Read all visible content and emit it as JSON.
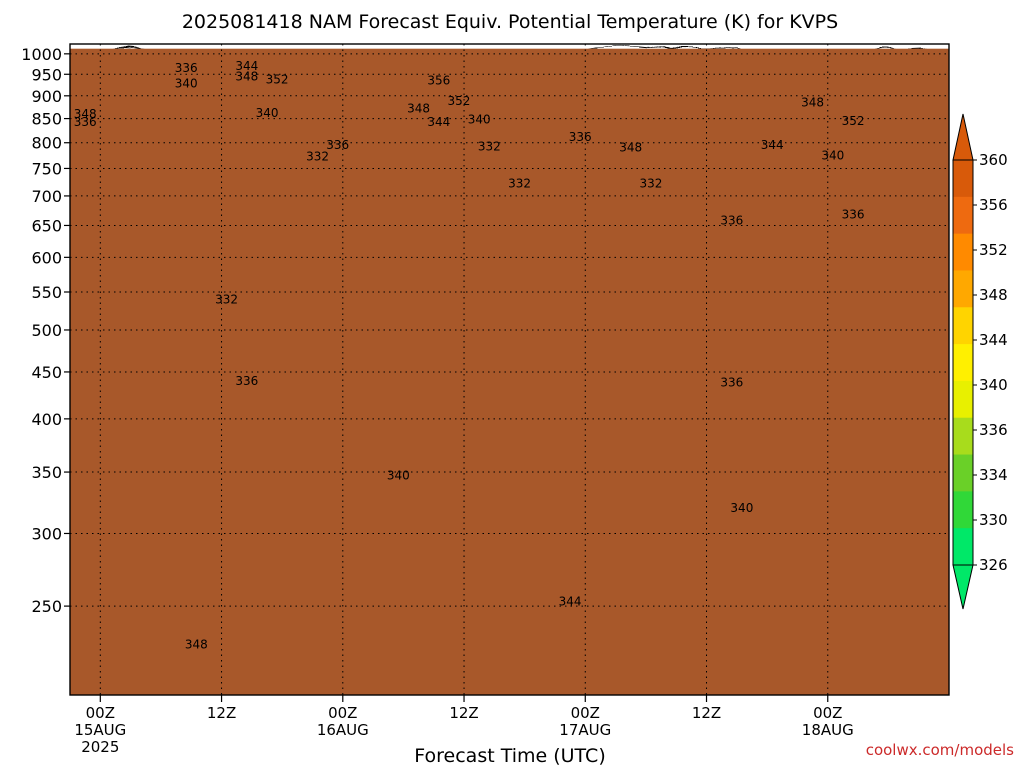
{
  "chart_data": {
    "type": "heatmap",
    "title": "2025081418 NAM Forecast Equiv. Potential Temperature (K) for KVPS",
    "xlabel": "Forecast Time (UTC)",
    "ylabel": "",
    "credit": "coolwx.com/models",
    "y_scale": "log-pressure",
    "y_range_hPa": [
      1025,
      200
    ],
    "y_ticks": [
      {
        "value": 250,
        "label": "250"
      },
      {
        "value": 300,
        "label": "300"
      },
      {
        "value": 350,
        "label": "350"
      },
      {
        "value": 400,
        "label": "400"
      },
      {
        "value": 450,
        "label": "450"
      },
      {
        "value": 500,
        "label": "500"
      },
      {
        "value": 550,
        "label": "550"
      },
      {
        "value": 600,
        "label": "600"
      },
      {
        "value": 650,
        "label": "650"
      },
      {
        "value": 700,
        "label": "700"
      },
      {
        "value": 750,
        "label": "750"
      },
      {
        "value": 800,
        "label": "800"
      },
      {
        "value": 850,
        "label": "850"
      },
      {
        "value": 900,
        "label": "900"
      },
      {
        "value": 950,
        "label": "950"
      },
      {
        "value": 1000,
        "label": "1000"
      }
    ],
    "x_range_hours": [
      -3,
      84
    ],
    "x_ticks": [
      {
        "value": 0,
        "lines": [
          "00Z",
          "15AUG",
          "2025"
        ]
      },
      {
        "value": 12,
        "lines": [
          "12Z"
        ]
      },
      {
        "value": 24,
        "lines": [
          "00Z",
          "16AUG"
        ]
      },
      {
        "value": 36,
        "lines": [
          "12Z"
        ]
      },
      {
        "value": 48,
        "lines": [
          "00Z",
          "17AUG"
        ]
      },
      {
        "value": 60,
        "lines": [
          "12Z"
        ]
      },
      {
        "value": 72,
        "lines": [
          "00Z",
          "18AUG"
        ]
      }
    ],
    "grid": true,
    "colorbar": {
      "levels": [
        326,
        330,
        334,
        336,
        340,
        344,
        348,
        352,
        356,
        360
      ],
      "colors": [
        "#00e868",
        "#30d838",
        "#6ad028",
        "#a8dc1c",
        "#e8f000",
        "#fff000",
        "#ffd400",
        "#ffa800",
        "#ff8a00",
        "#ee6a10",
        "#d85a0a"
      ],
      "triangle_colors": {
        "low": "#00e868",
        "high": "#d85a0a"
      }
    },
    "contour_labels": [
      {
        "text": "348",
        "x": 9.5,
        "p": 227
      },
      {
        "text": "344",
        "x": 46.5,
        "p": 253
      },
      {
        "text": "340",
        "x": 63.5,
        "p": 320
      },
      {
        "text": "340",
        "x": 29.5,
        "p": 347
      },
      {
        "text": "336",
        "x": 14.5,
        "p": 440
      },
      {
        "text": "336",
        "x": 62.5,
        "p": 438
      },
      {
        "text": "332",
        "x": 12.5,
        "p": 540
      },
      {
        "text": "336",
        "x": 62.5,
        "p": 658
      },
      {
        "text": "336",
        "x": 74.5,
        "p": 668
      },
      {
        "text": "332",
        "x": 41.5,
        "p": 722
      },
      {
        "text": "332",
        "x": 54.5,
        "p": 722
      },
      {
        "text": "332",
        "x": 21.5,
        "p": 773
      },
      {
        "text": "336",
        "x": 23.5,
        "p": 795
      },
      {
        "text": "332",
        "x": 38.5,
        "p": 792
      },
      {
        "text": "348",
        "x": 52.5,
        "p": 790
      },
      {
        "text": "344",
        "x": 66.5,
        "p": 795
      },
      {
        "text": "340",
        "x": 72.5,
        "p": 775
      },
      {
        "text": "336",
        "x": 47.5,
        "p": 812
      },
      {
        "text": "336",
        "x": -1.5,
        "p": 843
      },
      {
        "text": "348",
        "x": -1.5,
        "p": 860
      },
      {
        "text": "344",
        "x": 33.5,
        "p": 843
      },
      {
        "text": "340",
        "x": 37.5,
        "p": 848
      },
      {
        "text": "340",
        "x": 16.5,
        "p": 862
      },
      {
        "text": "348",
        "x": 31.5,
        "p": 872
      },
      {
        "text": "352",
        "x": 35.5,
        "p": 888
      },
      {
        "text": "352",
        "x": 74.5,
        "p": 845
      },
      {
        "text": "348",
        "x": 70.5,
        "p": 885
      },
      {
        "text": "340",
        "x": 8.5,
        "p": 928
      },
      {
        "text": "348",
        "x": 14.5,
        "p": 945
      },
      {
        "text": "352",
        "x": 17.5,
        "p": 938
      },
      {
        "text": "356",
        "x": 33.5,
        "p": 935
      },
      {
        "text": "336",
        "x": 8.5,
        "p": 965
      },
      {
        "text": "344",
        "x": 14.5,
        "p": 970
      }
    ]
  }
}
